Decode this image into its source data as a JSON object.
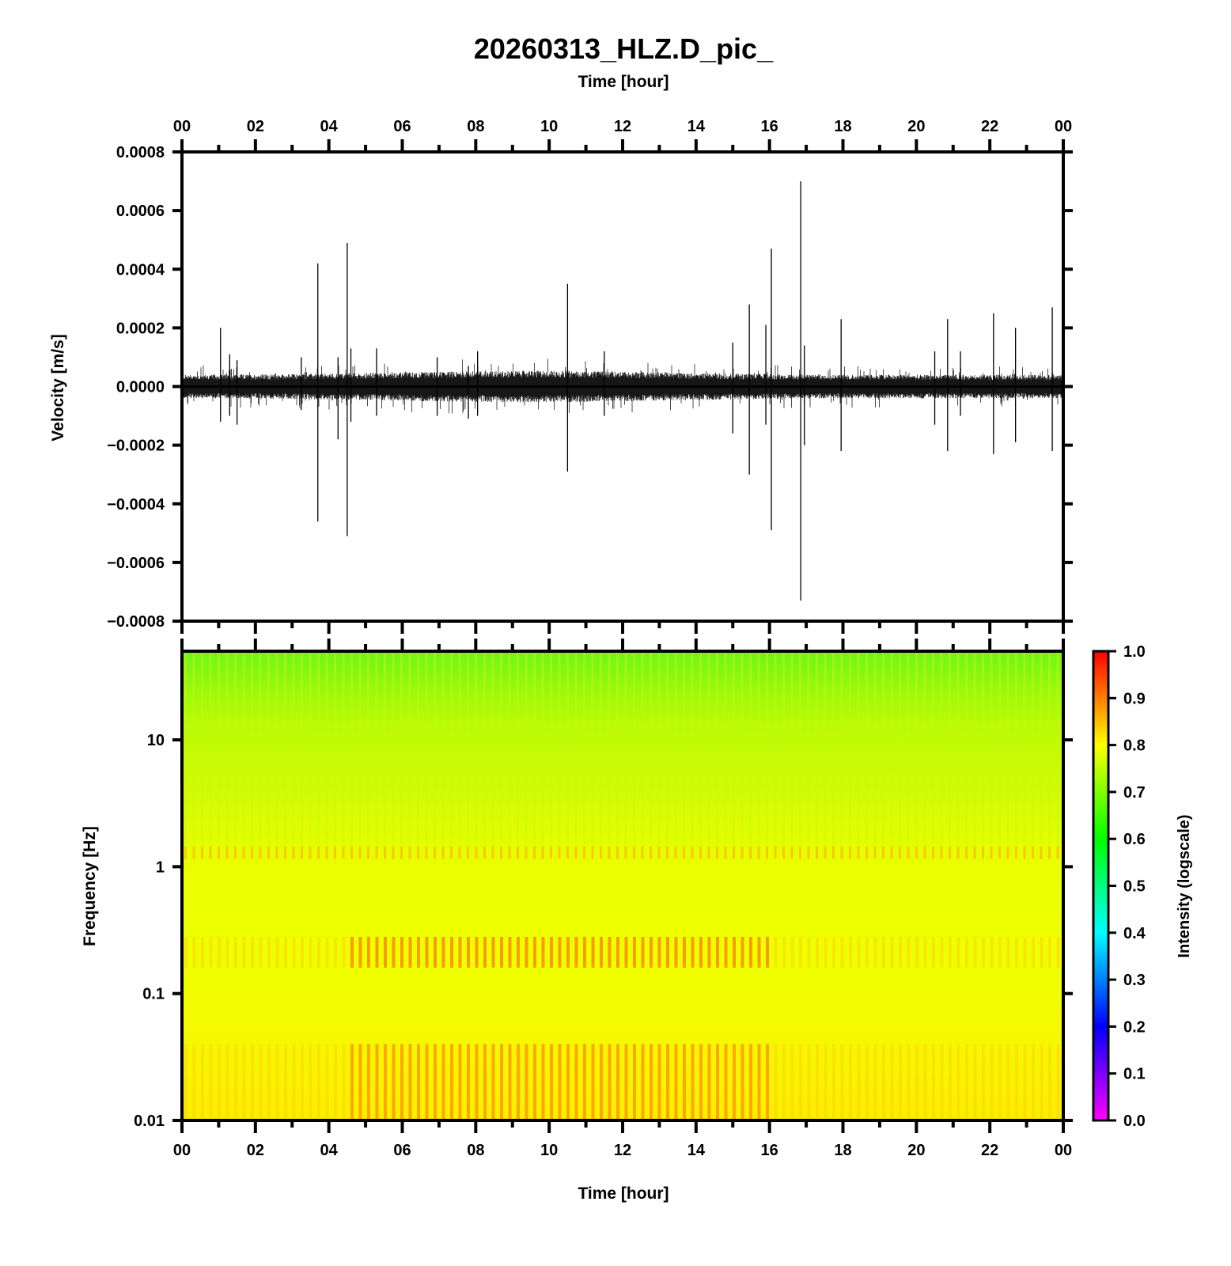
{
  "chart_data": [
    {
      "type": "line",
      "title": "20260313_HLZ.D_pic_",
      "xlabel": "Time [hour]",
      "ylabel": "Velocity [m/s]",
      "x_tick_labels": [
        "00",
        "02",
        "04",
        "06",
        "08",
        "10",
        "12",
        "14",
        "16",
        "18",
        "20",
        "22",
        "00"
      ],
      "xlim_hours": [
        0,
        24
      ],
      "ylim": [
        -0.0008,
        0.0008
      ],
      "y_ticks": [
        0.0008,
        0.0006,
        0.0004,
        0.0002,
        0.0,
        -0.0002,
        -0.0004,
        -0.0006,
        -0.0008
      ],
      "y_tick_labels": [
        "0.0008",
        "0.0006",
        "0.0004",
        "0.0002",
        "0.0000",
        "−0.0002",
        "−0.0004",
        "−0.0006",
        "−0.0008"
      ],
      "series": [
        {
          "line_color": "#000000",
          "noise_band_amplitude": 4e-05,
          "spikes": [
            {
              "hour": 1.05,
              "max": 0.0002,
              "min": -0.00012
            },
            {
              "hour": 1.3,
              "max": 0.00011,
              "min": -0.0001
            },
            {
              "hour": 1.5,
              "max": 9e-05,
              "min": -0.00013
            },
            {
              "hour": 3.25,
              "max": 0.0001,
              "min": -8e-05
            },
            {
              "hour": 3.7,
              "max": 0.00042,
              "min": -0.00046
            },
            {
              "hour": 4.25,
              "max": 0.0001,
              "min": -0.00018
            },
            {
              "hour": 4.5,
              "max": 0.00049,
              "min": -0.00051
            },
            {
              "hour": 4.6,
              "max": 0.00013,
              "min": -0.00012
            },
            {
              "hour": 5.3,
              "max": 0.00013,
              "min": -0.0001
            },
            {
              "hour": 6.95,
              "max": 0.0001,
              "min": -0.0001
            },
            {
              "hour": 7.8,
              "max": 7e-05,
              "min": -0.00011
            },
            {
              "hour": 8.05,
              "max": 0.00012,
              "min": -0.0001
            },
            {
              "hour": 10.5,
              "max": 0.00035,
              "min": -0.00029
            },
            {
              "hour": 11.5,
              "max": 0.00012,
              "min": -0.0001
            },
            {
              "hour": 15.0,
              "max": 0.00015,
              "min": -0.00016
            },
            {
              "hour": 15.45,
              "max": 0.00028,
              "min": -0.0003
            },
            {
              "hour": 15.9,
              "max": 0.00021,
              "min": -0.00013
            },
            {
              "hour": 16.05,
              "max": 0.00047,
              "min": -0.00049
            },
            {
              "hour": 16.85,
              "max": 0.0007,
              "min": -0.00073
            },
            {
              "hour": 16.95,
              "max": 0.00014,
              "min": -0.0002
            },
            {
              "hour": 17.95,
              "max": 0.00023,
              "min": -0.00022
            },
            {
              "hour": 20.5,
              "max": 0.00012,
              "min": -0.00013
            },
            {
              "hour": 20.85,
              "max": 0.00023,
              "min": -0.00022
            },
            {
              "hour": 21.2,
              "max": 0.00012,
              "min": -0.0001
            },
            {
              "hour": 22.1,
              "max": 0.00025,
              "min": -0.00023
            },
            {
              "hour": 22.7,
              "max": 0.0002,
              "min": -0.00019
            },
            {
              "hour": 23.7,
              "max": 0.00027,
              "min": -0.00022
            }
          ]
        }
      ]
    },
    {
      "type": "heatmap",
      "xlabel": "Time [hour]",
      "ylabel": "Frequency [Hz]",
      "x_tick_labels": [
        "00",
        "02",
        "04",
        "06",
        "08",
        "10",
        "12",
        "14",
        "16",
        "18",
        "20",
        "22",
        "00"
      ],
      "xlim_hours": [
        0,
        24
      ],
      "y_scale": "log",
      "ylim": [
        0.01,
        50
      ],
      "y_ticks": [
        10,
        1,
        0.1,
        0.01
      ],
      "y_tick_labels": [
        "10",
        "1",
        "0.1",
        "0.01"
      ],
      "colorbar": {
        "label": "Intensity (logscale)",
        "range": [
          0.0,
          1.0
        ],
        "tick_labels": [
          "1.0",
          "0.9",
          "0.8",
          "0.7",
          "0.6",
          "0.5",
          "0.4",
          "0.3",
          "0.2",
          "0.1",
          "0.0"
        ],
        "colormap": "hsv-rainbow (magenta → blue → cyan → green → yellow → red)"
      },
      "intensity_profile": [
        {
          "freq_hz": 50,
          "intensity": 0.62
        },
        {
          "freq_hz": 20,
          "intensity": 0.68
        },
        {
          "freq_hz": 10,
          "intensity": 0.73
        },
        {
          "freq_hz": 3,
          "intensity": 0.76
        },
        {
          "freq_hz": 1.3,
          "intensity": 0.8
        },
        {
          "freq_hz": 0.5,
          "intensity": 0.78
        },
        {
          "freq_hz": 0.2,
          "intensity": 0.8
        },
        {
          "freq_hz": 0.05,
          "intensity": 0.8
        },
        {
          "freq_hz": 0.01,
          "intensity": 0.84
        }
      ],
      "high_energy_window_hours": [
        4.5,
        16.0
      ]
    }
  ]
}
